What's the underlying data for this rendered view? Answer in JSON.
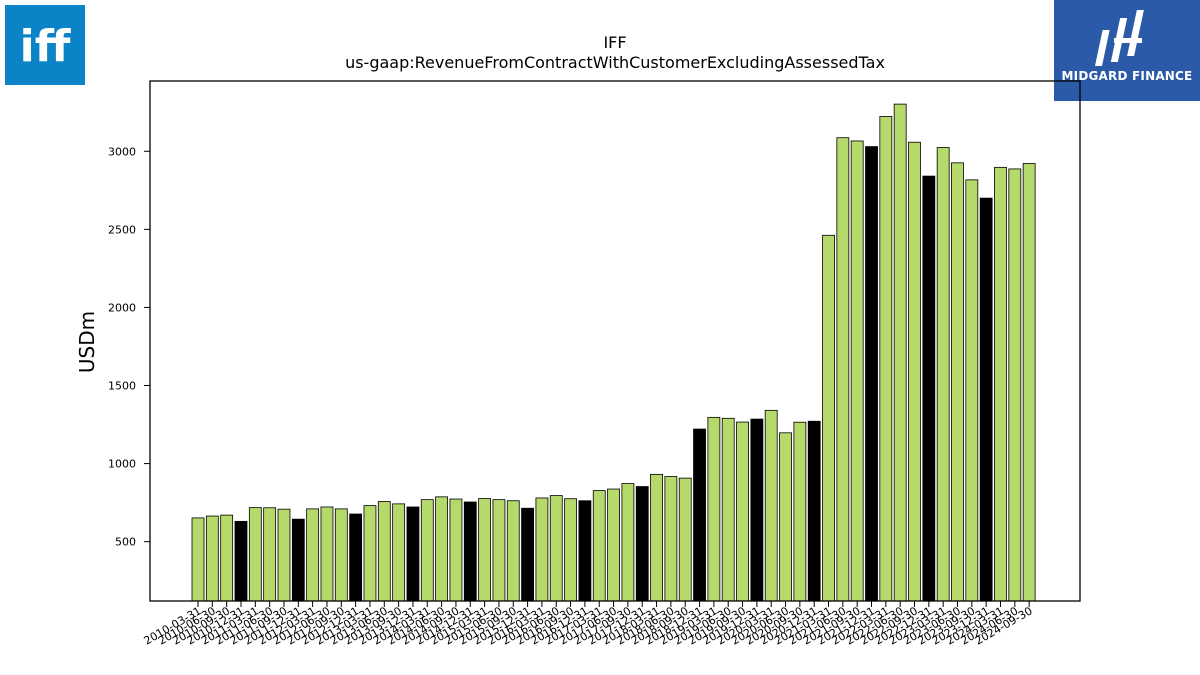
{
  "brand": {
    "left_logo_text": "iff",
    "left_logo_color": "#0a84c6",
    "right_logo_text": "MIDGARD FINANCE",
    "right_logo_color": "#2b5aa8"
  },
  "chart_data": {
    "type": "bar",
    "title": "IFF",
    "subtitle": "us-gaap:RevenueFromContractWithCustomerExcludingAssessedTax",
    "xlabel": "",
    "ylabel": "USDm",
    "ylim": [
      120,
      3450
    ],
    "yticks": [
      500,
      1000,
      1500,
      2000,
      2500,
      3000
    ],
    "grid": false,
    "colors": {
      "quarter": "#b5d96b",
      "year_end": "#000000",
      "edge": "#000000"
    },
    "categories": [
      "2010-03-31",
      "2010-06-30",
      "2010-09-30",
      "2010-12-31",
      "2011-03-31",
      "2011-06-30",
      "2011-09-30",
      "2011-12-31",
      "2012-03-31",
      "2012-06-30",
      "2012-09-30",
      "2012-12-31",
      "2013-03-31",
      "2013-06-30",
      "2013-09-30",
      "2013-12-31",
      "2014-03-31",
      "2014-06-30",
      "2014-09-30",
      "2014-12-31",
      "2015-03-31",
      "2015-06-30",
      "2015-09-30",
      "2015-12-31",
      "2016-03-31",
      "2016-06-30",
      "2016-09-30",
      "2016-12-31",
      "2017-03-31",
      "2017-06-30",
      "2017-09-30",
      "2017-12-31",
      "2018-03-31",
      "2018-06-30",
      "2018-09-30",
      "2018-12-31",
      "2019-03-31",
      "2019-06-30",
      "2019-09-30",
      "2019-12-31",
      "2020-03-31",
      "2020-06-30",
      "2020-09-30",
      "2020-12-31",
      "2021-03-31",
      "2021-06-30",
      "2021-09-30",
      "2021-12-31",
      "2022-03-31",
      "2022-06-30",
      "2022-09-30",
      "2022-12-31",
      "2023-03-31",
      "2023-06-30",
      "2023-09-30",
      "2023-12-31",
      "2024-03-31",
      "2024-06-30",
      "2024-09-30"
    ],
    "values": [
      652,
      664,
      670,
      630,
      718,
      717,
      708,
      644,
      710,
      722,
      710,
      677,
      731,
      757,
      742,
      722,
      769,
      787,
      773,
      754,
      776,
      769,
      762,
      714,
      780,
      795,
      775,
      762,
      827,
      837,
      872,
      853,
      931,
      917,
      907,
      1221,
      1296,
      1290,
      1266,
      1285,
      1341,
      1197,
      1265,
      1271,
      2462,
      3087,
      3066,
      3030,
      3223,
      3302,
      3058,
      2841,
      3024,
      2926,
      2817,
      2700,
      2897,
      2887,
      2922
    ],
    "year_end_flags": [
      false,
      false,
      false,
      true,
      false,
      false,
      false,
      true,
      false,
      false,
      false,
      true,
      false,
      false,
      false,
      true,
      false,
      false,
      false,
      true,
      false,
      false,
      false,
      true,
      false,
      false,
      false,
      true,
      false,
      false,
      false,
      true,
      false,
      false,
      false,
      true,
      false,
      false,
      false,
      true,
      false,
      false,
      false,
      true,
      false,
      false,
      false,
      true,
      false,
      false,
      false,
      true,
      false,
      false,
      false,
      true,
      false,
      false,
      false
    ]
  }
}
